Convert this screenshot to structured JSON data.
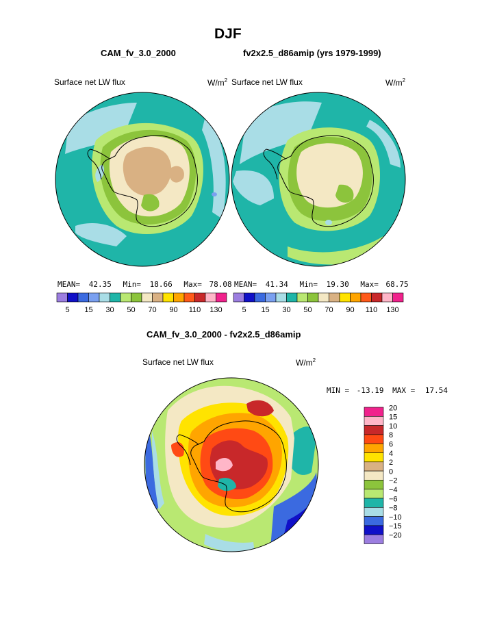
{
  "page": {
    "title": "DJF",
    "left_case": "CAM_fv_3.0_2000",
    "right_case": "fv2x2.5_d86amip (yrs 1979-1999)",
    "diff_title": "CAM_fv_3.0_2000 - fv2x2.5_d86amip"
  },
  "colors": {
    "continent_line": "#000000",
    "map_outline": "#000000"
  },
  "chart_data": [
    {
      "type": "heatmap",
      "title": "Surface net LW flux",
      "units": "W/m",
      "units_sup": "2",
      "projection": "south-polar stereographic",
      "stats": {
        "mean_label": "MEAN=",
        "mean": "42.35",
        "min_label": "Min=",
        "min": "18.66",
        "max_label": "Max=",
        "max": "78.08"
      },
      "levels": [
        "5",
        "15",
        "30",
        "50",
        "70",
        "90",
        "110",
        "130"
      ],
      "palette": [
        "#9c7ee0",
        "#1010c8",
        "#3b6ae0",
        "#7aa0f0",
        "#a9dde6",
        "#1fb5a8",
        "#b9e872",
        "#8cc43c",
        "#f4e8c4",
        "#d9b183",
        "#ffe300",
        "#ffa500",
        "#ff5a1a",
        "#c8282a",
        "#ffb6c8",
        "#f0228c"
      ]
    },
    {
      "type": "heatmap",
      "title": "Surface net LW flux",
      "units": "W/m",
      "units_sup": "2",
      "projection": "south-polar stereographic",
      "stats": {
        "mean_label": "MEAN=",
        "mean": "41.34",
        "min_label": "Min=",
        "min": "19.30",
        "max_label": "Max=",
        "max": "68.75"
      },
      "levels": [
        "5",
        "15",
        "30",
        "50",
        "70",
        "90",
        "110",
        "130"
      ],
      "palette": [
        "#9c7ee0",
        "#1010c8",
        "#3b6ae0",
        "#7aa0f0",
        "#a9dde6",
        "#1fb5a8",
        "#b9e872",
        "#8cc43c",
        "#f4e8c4",
        "#d9b183",
        "#ffe300",
        "#ffa500",
        "#ff5a1a",
        "#c8282a",
        "#ffb6c8",
        "#f0228c"
      ]
    },
    {
      "type": "heatmap",
      "title": "Surface net LW flux",
      "units": "W/m",
      "units_sup": "2",
      "projection": "south-polar stereographic",
      "stats": {
        "min_label": "MIN =",
        "min": "-13.19",
        "max_label": "MAX =",
        "max": "17.54"
      },
      "levels": [
        "20",
        "15",
        "10",
        "8",
        "6",
        "4",
        "2",
        "0",
        "−2",
        "−4",
        "−6",
        "−8",
        "−10",
        "−15",
        "−20"
      ],
      "palette": [
        "#f0228c",
        "#ffb6c8",
        "#c8282a",
        "#ff4a14",
        "#ffa500",
        "#ffe300",
        "#d9b183",
        "#f4e8c4",
        "#8cc43c",
        "#b9e872",
        "#1fb5a8",
        "#a9dde6",
        "#3b6ae0",
        "#1010c8",
        "#9c7ee0"
      ]
    }
  ]
}
